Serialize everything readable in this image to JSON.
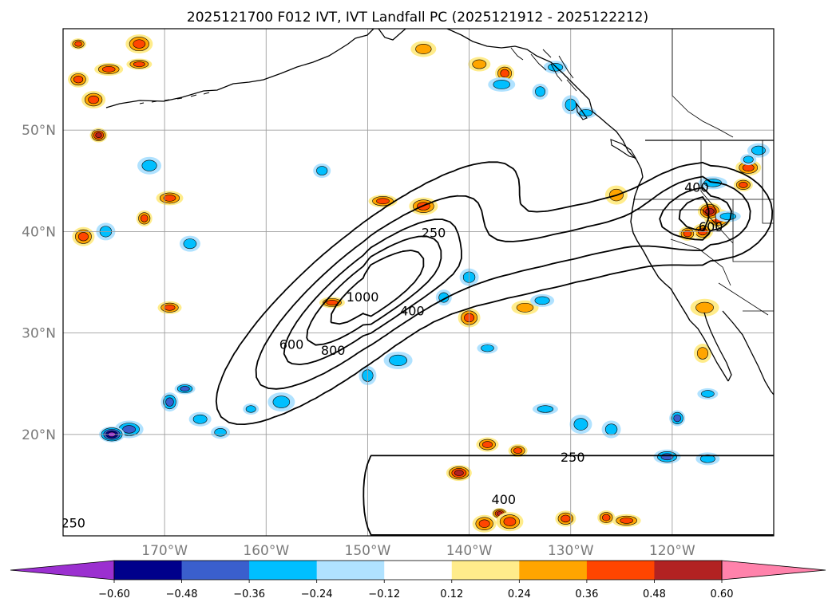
{
  "chart_data": {
    "type": "filled-contour-map",
    "title": "2025121700 F012 IVT, IVT Landfall PC (2025121912 - 2025122212)",
    "projection": "cylindrical",
    "lon_range": [
      -180,
      -110
    ],
    "lat_range": [
      10,
      60
    ],
    "lat_ticks": [
      {
        "value": 20,
        "label": "20°N"
      },
      {
        "value": 30,
        "label": "30°N"
      },
      {
        "value": 40,
        "label": "40°N"
      },
      {
        "value": 50,
        "label": "50°N"
      }
    ],
    "lon_ticks": [
      {
        "value": -170,
        "label": "170°W"
      },
      {
        "value": -160,
        "label": "160°W"
      },
      {
        "value": -150,
        "label": "150°W"
      },
      {
        "value": -140,
        "label": "140°W"
      },
      {
        "value": -130,
        "label": "130°W"
      },
      {
        "value": -120,
        "label": "120°W"
      }
    ],
    "gridlines": true,
    "ivt_contour_levels": [
      250,
      400,
      600,
      800,
      1000
    ],
    "ivt_contour_labels": [
      {
        "text": "250",
        "lon": -179,
        "lat": 11.3
      },
      {
        "text": "250",
        "lon": -143.5,
        "lat": 39.9
      },
      {
        "text": "250",
        "lon": -129.8,
        "lat": 17.8
      },
      {
        "text": "400",
        "lon": -136.6,
        "lat": 13.6
      },
      {
        "text": "400",
        "lon": -145.6,
        "lat": 32.2
      },
      {
        "text": "400",
        "lon": -117.6,
        "lat": 44.4
      },
      {
        "text": "600",
        "lon": -157.5,
        "lat": 28.9
      },
      {
        "text": "600",
        "lon": -116.2,
        "lat": 40.5
      },
      {
        "text": "800",
        "lon": -153.4,
        "lat": 28.3
      },
      {
        "text": "1000",
        "lon": -150.5,
        "lat": 33.6
      }
    ],
    "colorbar": {
      "orientation": "horizontal",
      "extend": "both",
      "levels": [
        -0.72,
        -0.6,
        -0.48,
        -0.36,
        -0.24,
        -0.12,
        0.12,
        0.24,
        0.36,
        0.48,
        0.6,
        0.72
      ],
      "colors": [
        "#9b30d0",
        "#00008b",
        "#3a5fcd",
        "#00bfff",
        "#b0e2ff",
        "#ffffff",
        "#ffec8b",
        "#ffa500",
        "#ff4500",
        "#b22222",
        "#ff82ab"
      ],
      "tick_labels": [
        "−0.60",
        "−0.48",
        "−0.36",
        "−0.24",
        "−0.12",
        "0.12",
        "0.24",
        "0.36",
        "0.48",
        "0.60"
      ]
    },
    "pc_blobs": [
      {
        "lon": -178.5,
        "lat": 58.5,
        "value": 0.4
      },
      {
        "lon": -172.5,
        "lat": 58.5,
        "value": 0.42
      },
      {
        "lon": -177,
        "lat": 53,
        "value": 0.42
      },
      {
        "lon": -178.5,
        "lat": 55,
        "value": 0.38
      },
      {
        "lon": -176.5,
        "lat": 49.5,
        "value": 0.5
      },
      {
        "lon": -175.5,
        "lat": 56,
        "value": 0.36
      },
      {
        "lon": -172.5,
        "lat": 56.5,
        "value": 0.36
      },
      {
        "lon": -178,
        "lat": 39.5,
        "value": 0.42
      },
      {
        "lon": -175.8,
        "lat": 40,
        "value": -0.3
      },
      {
        "lon": -172,
        "lat": 41.3,
        "value": 0.46
      },
      {
        "lon": -169.5,
        "lat": 43.3,
        "value": 0.46
      },
      {
        "lon": -169.5,
        "lat": 32.5,
        "value": 0.38
      },
      {
        "lon": -168,
        "lat": 24.5,
        "value": -0.4
      },
      {
        "lon": -169.5,
        "lat": 23.2,
        "value": -0.42
      },
      {
        "lon": -173.5,
        "lat": 20.5,
        "value": -0.4
      },
      {
        "lon": -175.2,
        "lat": 20,
        "value": -0.6
      },
      {
        "lon": -166.5,
        "lat": 21.5,
        "value": -0.3
      },
      {
        "lon": -164.5,
        "lat": 20.2,
        "value": -0.34
      },
      {
        "lon": -161.5,
        "lat": 22.5,
        "value": -0.3
      },
      {
        "lon": -158.5,
        "lat": 23.2,
        "value": -0.34
      },
      {
        "lon": -171.5,
        "lat": 46.5,
        "value": -0.3
      },
      {
        "lon": -167.5,
        "lat": 38.8,
        "value": -0.24
      },
      {
        "lon": -154.5,
        "lat": 46,
        "value": -0.3
      },
      {
        "lon": -148.5,
        "lat": 43,
        "value": 0.36
      },
      {
        "lon": -153.5,
        "lat": 33,
        "value": 0.4
      },
      {
        "lon": -140,
        "lat": 31.5,
        "value": 0.38
      },
      {
        "lon": -140,
        "lat": 35.5,
        "value": -0.3
      },
      {
        "lon": -142.5,
        "lat": 33.5,
        "value": -0.3
      },
      {
        "lon": -134.5,
        "lat": 32.5,
        "value": 0.34
      },
      {
        "lon": -132.8,
        "lat": 33.2,
        "value": -0.3
      },
      {
        "lon": -138.2,
        "lat": 28.5,
        "value": -0.24
      },
      {
        "lon": -150,
        "lat": 25.8,
        "value": -0.3
      },
      {
        "lon": -147,
        "lat": 27.3,
        "value": -0.3
      },
      {
        "lon": -141,
        "lat": 16.2,
        "value": 0.5
      },
      {
        "lon": -138.2,
        "lat": 19,
        "value": 0.38
      },
      {
        "lon": -135.2,
        "lat": 18.4,
        "value": 0.46
      },
      {
        "lon": -137,
        "lat": 12.2,
        "value": 0.58
      },
      {
        "lon": -136,
        "lat": 11.4,
        "value": 0.44
      },
      {
        "lon": -138.5,
        "lat": 11.2,
        "value": 0.4
      },
      {
        "lon": -130.5,
        "lat": 11.7,
        "value": 0.38
      },
      {
        "lon": -126.5,
        "lat": 11.8,
        "value": 0.42
      },
      {
        "lon": -124.5,
        "lat": 11.5,
        "value": 0.38
      },
      {
        "lon": -132.5,
        "lat": 22.5,
        "value": -0.3
      },
      {
        "lon": -129,
        "lat": 21,
        "value": -0.3
      },
      {
        "lon": -126,
        "lat": 20.5,
        "value": -0.34
      },
      {
        "lon": -119.5,
        "lat": 21.6,
        "value": -0.38
      },
      {
        "lon": -120.5,
        "lat": 17.8,
        "value": -0.36
      },
      {
        "lon": -116.5,
        "lat": 17.6,
        "value": -0.34
      },
      {
        "lon": -116.5,
        "lat": 24,
        "value": -0.3
      },
      {
        "lon": -117,
        "lat": 28,
        "value": 0.34
      },
      {
        "lon": -116.8,
        "lat": 32.5,
        "value": 0.3
      },
      {
        "lon": -112.5,
        "lat": 46.3,
        "value": 0.42
      },
      {
        "lon": -111.5,
        "lat": 48,
        "value": -0.24
      },
      {
        "lon": -113,
        "lat": 44.6,
        "value": 0.36
      },
      {
        "lon": -112.5,
        "lat": 47.1,
        "value": -0.3
      },
      {
        "lon": -115.5,
        "lat": 41.3,
        "value": 0.44
      },
      {
        "lon": -116.3,
        "lat": 42,
        "value": 0.5
      },
      {
        "lon": -117,
        "lat": 40,
        "value": 0.36
      },
      {
        "lon": -118.5,
        "lat": 39.8,
        "value": 0.36
      },
      {
        "lon": -116,
        "lat": 44.8,
        "value": -0.3
      },
      {
        "lon": -114.5,
        "lat": 41.5,
        "value": -0.24
      },
      {
        "lon": -125.5,
        "lat": 43.6,
        "value": 0.3
      },
      {
        "lon": -136.5,
        "lat": 55.6,
        "value": 0.4
      },
      {
        "lon": -133,
        "lat": 53.8,
        "value": -0.3
      },
      {
        "lon": -136.8,
        "lat": 54.5,
        "value": -0.24
      },
      {
        "lon": -131.5,
        "lat": 56.2,
        "value": -0.3
      },
      {
        "lon": -128.5,
        "lat": 51.7,
        "value": -0.3
      },
      {
        "lon": -130,
        "lat": 52.5,
        "value": -0.3
      },
      {
        "lon": -144.5,
        "lat": 42.5,
        "value": 0.38
      },
      {
        "lon": -144.5,
        "lat": 58,
        "value": 0.3
      },
      {
        "lon": -139,
        "lat": 56.5,
        "value": 0.32
      }
    ],
    "ivt_field_centers": [
      {
        "lon": -150,
        "lat": 34,
        "amplitude": 960
      },
      {
        "lon": -116.5,
        "lat": 41.8,
        "amplitude": 560
      }
    ],
    "ivt_background": 190
  }
}
